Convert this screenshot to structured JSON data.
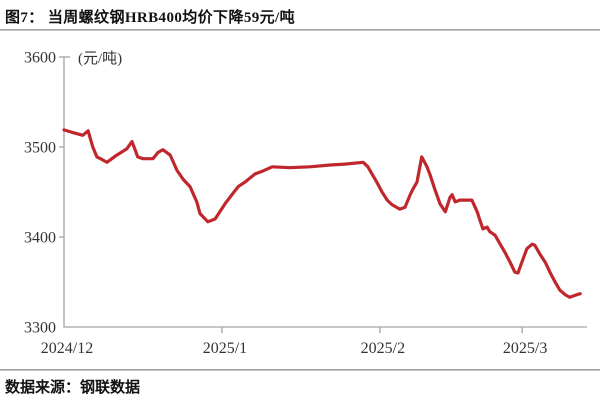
{
  "figure": {
    "title": "图7： 当周螺纹钢HRB400均价下降59元/吨",
    "source": "数据来源：钢联数据"
  },
  "chart_data": {
    "type": "line",
    "title": "图7： 当周螺纹钢HRB400均价下降59元/吨",
    "unit_label": "(元/吨)",
    "xlabel": "",
    "ylabel": "",
    "ylim": [
      3300,
      3600
    ],
    "yticks": [
      3600,
      3500,
      3400,
      3300
    ],
    "xticks": [
      {
        "label": "2024/12",
        "pos": 0.0
      },
      {
        "label": "2025/1",
        "pos": 0.302
      },
      {
        "label": "2025/2",
        "pos": 0.604
      },
      {
        "label": "2025/3",
        "pos": 0.876
      }
    ],
    "grid": false,
    "legend_position": "none",
    "line_color": "#c0272d",
    "axis_color": "#a3a3a3",
    "tick_label_color": "#333333",
    "series": [
      {
        "points": [
          [
            0.0,
            3519
          ],
          [
            0.017,
            3516
          ],
          [
            0.036,
            3513
          ],
          [
            0.046,
            3518
          ],
          [
            0.055,
            3500
          ],
          [
            0.063,
            3489
          ],
          [
            0.073,
            3486
          ],
          [
            0.082,
            3483
          ],
          [
            0.101,
            3491
          ],
          [
            0.12,
            3498
          ],
          [
            0.13,
            3506
          ],
          [
            0.136,
            3497
          ],
          [
            0.141,
            3489
          ],
          [
            0.151,
            3487
          ],
          [
            0.17,
            3487
          ],
          [
            0.18,
            3494
          ],
          [
            0.189,
            3497
          ],
          [
            0.203,
            3491
          ],
          [
            0.216,
            3474
          ],
          [
            0.228,
            3464
          ],
          [
            0.241,
            3456
          ],
          [
            0.254,
            3439
          ],
          [
            0.26,
            3426
          ],
          [
            0.275,
            3417
          ],
          [
            0.289,
            3420
          ],
          [
            0.308,
            3437
          ],
          [
            0.321,
            3447
          ],
          [
            0.333,
            3456
          ],
          [
            0.346,
            3461
          ],
          [
            0.365,
            3470
          ],
          [
            0.379,
            3473
          ],
          [
            0.398,
            3478
          ],
          [
            0.432,
            3477
          ],
          [
            0.47,
            3478
          ],
          [
            0.509,
            3480
          ],
          [
            0.537,
            3481
          ],
          [
            0.572,
            3483
          ],
          [
            0.581,
            3478
          ],
          [
            0.589,
            3470
          ],
          [
            0.598,
            3461
          ],
          [
            0.608,
            3450
          ],
          [
            0.618,
            3441
          ],
          [
            0.627,
            3436
          ],
          [
            0.642,
            3431
          ],
          [
            0.652,
            3433
          ],
          [
            0.662,
            3447
          ],
          [
            0.667,
            3453
          ],
          [
            0.675,
            3461
          ],
          [
            0.684,
            3489
          ],
          [
            0.694,
            3478
          ],
          [
            0.7,
            3469
          ],
          [
            0.709,
            3453
          ],
          [
            0.719,
            3437
          ],
          [
            0.729,
            3428
          ],
          [
            0.738,
            3444
          ],
          [
            0.742,
            3447
          ],
          [
            0.748,
            3439
          ],
          [
            0.757,
            3441
          ],
          [
            0.78,
            3441
          ],
          [
            0.79,
            3428
          ],
          [
            0.795,
            3419
          ],
          [
            0.801,
            3409
          ],
          [
            0.809,
            3411
          ],
          [
            0.814,
            3406
          ],
          [
            0.824,
            3402
          ],
          [
            0.834,
            3392
          ],
          [
            0.843,
            3383
          ],
          [
            0.853,
            3372
          ],
          [
            0.862,
            3361
          ],
          [
            0.868,
            3360
          ],
          [
            0.878,
            3376
          ],
          [
            0.885,
            3387
          ],
          [
            0.895,
            3392
          ],
          [
            0.9,
            3391
          ],
          [
            0.91,
            3381
          ],
          [
            0.92,
            3372
          ],
          [
            0.929,
            3361
          ],
          [
            0.939,
            3350
          ],
          [
            0.948,
            3341
          ],
          [
            0.958,
            3336
          ],
          [
            0.967,
            3333
          ],
          [
            0.981,
            3336
          ],
          [
            0.987,
            3337
          ]
        ]
      }
    ]
  }
}
